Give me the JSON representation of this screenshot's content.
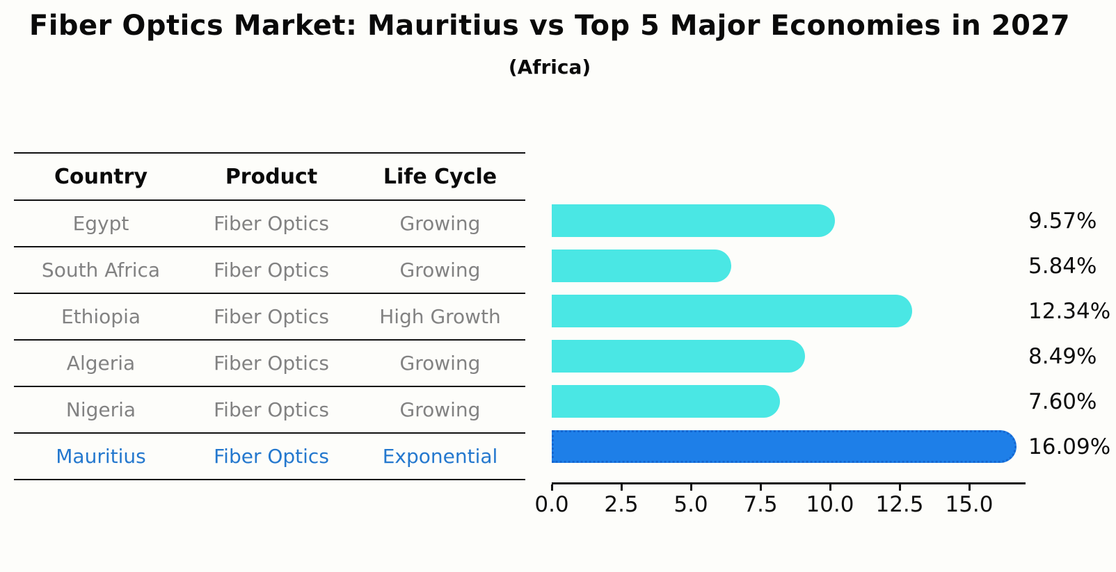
{
  "title": "Fiber Optics Market: Mauritius vs Top 5 Major Economies in 2027",
  "subtitle": "(Africa)",
  "table": {
    "headers": [
      "Country",
      "Product",
      "Life Cycle"
    ],
    "rows": [
      {
        "country": "Egypt",
        "product": "Fiber Optics",
        "life_cycle": "Growing",
        "highlight": false
      },
      {
        "country": "South Africa",
        "product": "Fiber Optics",
        "life_cycle": "Growing",
        "highlight": false
      },
      {
        "country": "Ethiopia",
        "product": "Fiber Optics",
        "life_cycle": "High Growth",
        "highlight": false
      },
      {
        "country": "Algeria",
        "product": "Fiber Optics",
        "life_cycle": "Growing",
        "highlight": false
      },
      {
        "country": "Nigeria",
        "product": "Fiber Optics",
        "life_cycle": "Growing",
        "highlight": false
      },
      {
        "country": "Mauritius",
        "product": "Fiber Optics",
        "life_cycle": "Exponential",
        "highlight": true
      }
    ]
  },
  "chart_data": {
    "type": "bar",
    "orientation": "horizontal",
    "title": "Fiber Optics Market: Mauritius vs Top 5 Major Economies in 2027",
    "subtitle": "(Africa)",
    "categories": [
      "Egypt",
      "South Africa",
      "Ethiopia",
      "Algeria",
      "Nigeria",
      "Mauritius"
    ],
    "values": [
      9.57,
      5.84,
      12.34,
      8.49,
      7.6,
      16.09
    ],
    "value_labels": [
      "9.57%",
      "5.84%",
      "12.34%",
      "8.49%",
      "7.60%",
      "16.09%"
    ],
    "highlight_index": 5,
    "xlim": [
      0,
      17
    ],
    "x_ticks": [
      0,
      2.5,
      5,
      7.5,
      10,
      12.5,
      15
    ],
    "x_tick_labels": [
      "0.0",
      "2.5",
      "5.0",
      "7.5",
      "10.0",
      "12.5",
      "15.0"
    ],
    "legend": "none",
    "grid": false
  },
  "colors": {
    "bar": "#4AE7E4",
    "highlight_bar": "#1E7FE8",
    "highlight_border": "#1466D0",
    "highlight_text": "#2478CE",
    "row_text": "#828282",
    "header_text": "#0a0a0a",
    "axis": "#111111"
  }
}
